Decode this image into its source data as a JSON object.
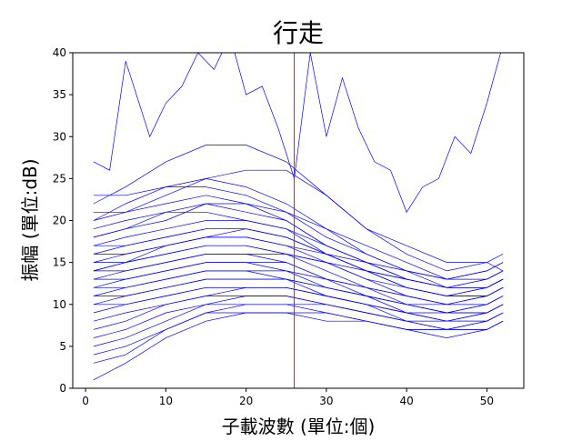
{
  "chart_data": {
    "type": "line",
    "title": "行走",
    "xlabel": "子載波數 (單位:個)",
    "ylabel": "振幅 (單位:dB)",
    "xlim": [
      -1.6,
      54.6
    ],
    "ylim": [
      0,
      40
    ],
    "xticks": [
      0,
      10,
      20,
      30,
      40,
      50
    ],
    "yticks": [
      0,
      5,
      10,
      15,
      20,
      25,
      30,
      35,
      40
    ],
    "grid": false,
    "legend": "none",
    "series_color": "#0000ff",
    "marker_color": "#ff0000",
    "marker_x": 26,
    "subcarriers": [
      1,
      52
    ],
    "series": [
      {
        "x": [
          1,
          3,
          5,
          8,
          10,
          12,
          14,
          16,
          18,
          20,
          22,
          24,
          26,
          28,
          30,
          32,
          34,
          36,
          38,
          40,
          42,
          44,
          46,
          48,
          50,
          52
        ],
        "y": [
          27,
          26,
          39,
          30,
          34,
          36,
          40,
          38,
          42,
          35,
          36,
          31,
          25,
          40,
          30,
          37,
          31,
          27,
          26,
          21,
          24,
          25,
          30,
          28,
          34,
          41
        ]
      },
      {
        "x": [
          1,
          5,
          10,
          15,
          20,
          25,
          30,
          35,
          40,
          45,
          50,
          52
        ],
        "y": [
          22,
          24,
          27,
          29,
          29,
          27,
          23,
          19,
          17,
          15,
          15,
          14
        ]
      },
      {
        "x": [
          1,
          5,
          10,
          15,
          20,
          25,
          30,
          35,
          40,
          45,
          50,
          52
        ],
        "y": [
          20,
          22,
          24,
          25,
          24,
          22,
          19,
          16,
          14,
          13,
          14,
          15
        ]
      },
      {
        "x": [
          1,
          5,
          10,
          15,
          20,
          25,
          30,
          35,
          40,
          45,
          50,
          52
        ],
        "y": [
          18,
          19,
          21,
          22,
          21,
          20,
          17,
          15,
          13,
          12,
          13,
          14
        ]
      },
      {
        "x": [
          1,
          5,
          10,
          15,
          20,
          25,
          30,
          35,
          40,
          45,
          50,
          52
        ],
        "y": [
          16,
          17,
          18,
          19,
          19,
          18,
          16,
          14,
          12,
          11,
          12,
          13
        ]
      },
      {
        "x": [
          1,
          5,
          10,
          15,
          20,
          25,
          30,
          35,
          40,
          45,
          50,
          52
        ],
        "y": [
          15,
          15,
          16,
          17,
          17,
          16,
          15,
          13,
          12,
          11,
          11,
          12
        ]
      },
      {
        "x": [
          1,
          5,
          10,
          15,
          20,
          25,
          30,
          35,
          40,
          45,
          50,
          52
        ],
        "y": [
          14,
          15,
          17,
          18,
          18,
          17,
          15,
          13,
          11,
          10,
          11,
          12
        ]
      },
      {
        "x": [
          1,
          5,
          10,
          15,
          20,
          25,
          30,
          35,
          40,
          45,
          50,
          52
        ],
        "y": [
          13,
          14,
          15,
          16,
          16,
          15,
          13,
          12,
          10,
          10,
          10,
          11
        ]
      },
      {
        "x": [
          1,
          5,
          10,
          15,
          20,
          25,
          30,
          35,
          40,
          45,
          50,
          52
        ],
        "y": [
          12,
          13,
          14,
          15,
          15,
          14,
          13,
          11,
          10,
          9,
          10,
          11
        ]
      },
      {
        "x": [
          1,
          5,
          10,
          15,
          20,
          25,
          30,
          35,
          40,
          45,
          50,
          52
        ],
        "y": [
          11,
          12,
          13,
          14,
          14,
          13,
          12,
          11,
          9,
          9,
          9,
          10
        ]
      },
      {
        "x": [
          1,
          5,
          10,
          15,
          20,
          25,
          30,
          35,
          40,
          45,
          50,
          52
        ],
        "y": [
          10,
          11,
          12,
          13,
          13,
          13,
          11,
          10,
          9,
          8,
          9,
          10
        ]
      },
      {
        "x": [
          1,
          5,
          10,
          15,
          20,
          25,
          30,
          35,
          40,
          45,
          50,
          52
        ],
        "y": [
          9,
          10,
          11,
          12,
          12,
          12,
          11,
          10,
          8,
          8,
          8,
          9
        ]
      },
      {
        "x": [
          1,
          5,
          10,
          15,
          20,
          25,
          30,
          35,
          40,
          45,
          50,
          52
        ],
        "y": [
          8,
          9,
          10,
          11,
          11,
          11,
          10,
          9,
          8,
          7,
          8,
          9
        ]
      },
      {
        "x": [
          1,
          5,
          10,
          15,
          20,
          25,
          30,
          35,
          40,
          45,
          50,
          52
        ],
        "y": [
          6,
          7,
          9,
          10,
          10,
          10,
          9,
          8,
          7,
          7,
          7,
          8
        ]
      },
      {
        "x": [
          1,
          5,
          10,
          15,
          20,
          25,
          30,
          35,
          40,
          45,
          50,
          52
        ],
        "y": [
          4,
          5,
          7,
          9,
          9,
          9,
          8,
          8,
          7,
          6,
          7,
          8
        ]
      },
      {
        "x": [
          1,
          5,
          10,
          15,
          20,
          25,
          30,
          35,
          40,
          45,
          50,
          52
        ],
        "y": [
          1,
          3,
          6,
          8,
          9,
          9,
          9,
          8,
          7,
          7,
          7,
          8
        ]
      },
      {
        "x": [
          1,
          5,
          10,
          15,
          20,
          25,
          30,
          35,
          40,
          45,
          50,
          52
        ],
        "y": [
          23,
          23,
          24,
          24,
          23,
          21,
          18,
          16,
          14,
          12,
          13,
          14
        ]
      },
      {
        "x": [
          1,
          5,
          10,
          15,
          20,
          25,
          30,
          35,
          40,
          45,
          50,
          52
        ],
        "y": [
          21,
          21,
          22,
          23,
          22,
          20,
          17,
          15,
          13,
          12,
          12,
          13
        ]
      },
      {
        "x": [
          1,
          5,
          10,
          15,
          20,
          25,
          30,
          35,
          40,
          45,
          50,
          52
        ],
        "y": [
          19,
          20,
          21,
          21,
          20,
          19,
          16,
          14,
          13,
          12,
          12,
          13
        ]
      },
      {
        "x": [
          1,
          5,
          10,
          15,
          20,
          25,
          30,
          35,
          40,
          45,
          50,
          52
        ],
        "y": [
          17,
          18,
          19,
          20,
          20,
          19,
          17,
          15,
          13,
          12,
          12,
          13
        ]
      },
      {
        "x": [
          1,
          5,
          10,
          15,
          20,
          25,
          30,
          35,
          40,
          45,
          50,
          52
        ],
        "y": [
          16,
          16,
          17,
          18,
          18,
          17,
          16,
          14,
          12,
          11,
          11,
          12
        ]
      },
      {
        "x": [
          1,
          5,
          10,
          15,
          20,
          25,
          30,
          35,
          40,
          45,
          50,
          52
        ],
        "y": [
          15,
          16,
          17,
          18,
          19,
          18,
          16,
          14,
          12,
          11,
          12,
          13
        ]
      },
      {
        "x": [
          1,
          5,
          10,
          15,
          20,
          25,
          30,
          35,
          40,
          45,
          50,
          52
        ],
        "y": [
          14,
          15,
          16,
          17,
          17,
          16,
          14,
          12,
          11,
          10,
          11,
          12
        ]
      },
      {
        "x": [
          1,
          5,
          10,
          15,
          20,
          25,
          30,
          35,
          40,
          45,
          50,
          52
        ],
        "y": [
          13,
          13,
          14,
          15,
          15,
          15,
          13,
          12,
          11,
          10,
          10,
          11
        ]
      },
      {
        "x": [
          1,
          5,
          10,
          15,
          20,
          25,
          30,
          35,
          40,
          45,
          50,
          52
        ],
        "y": [
          12,
          12,
          13,
          14,
          14,
          14,
          12,
          11,
          10,
          9,
          10,
          11
        ]
      },
      {
        "x": [
          1,
          5,
          10,
          15,
          20,
          25,
          30,
          35,
          40,
          45,
          50,
          52
        ],
        "y": [
          11,
          11,
          12,
          13,
          13,
          13,
          12,
          11,
          10,
          9,
          9,
          10
        ]
      },
      {
        "x": [
          1,
          5,
          10,
          15,
          20,
          25,
          30,
          35,
          40,
          45,
          50,
          52
        ],
        "y": [
          10,
          10,
          11,
          12,
          12,
          12,
          11,
          10,
          9,
          8,
          9,
          10
        ]
      },
      {
        "x": [
          1,
          5,
          10,
          15,
          20,
          25,
          30,
          35,
          40,
          45,
          50,
          52
        ],
        "y": [
          7,
          8,
          10,
          11,
          12,
          12,
          11,
          10,
          9,
          8,
          8,
          9
        ]
      },
      {
        "x": [
          1,
          5,
          10,
          15,
          20,
          25,
          30,
          35,
          40,
          45,
          50,
          52
        ],
        "y": [
          5,
          6,
          8,
          10,
          11,
          11,
          10,
          9,
          8,
          8,
          8,
          9
        ]
      },
      {
        "x": [
          1,
          5,
          10,
          15,
          20,
          25,
          30,
          35,
          40,
          45,
          50,
          52
        ],
        "y": [
          3,
          4,
          7,
          9,
          10,
          10,
          10,
          9,
          8,
          7,
          8,
          9
        ]
      },
      {
        "x": [
          1,
          5,
          10,
          15,
          20,
          25,
          30,
          35,
          40,
          45,
          50,
          52
        ],
        "y": [
          20,
          21,
          23,
          25,
          26,
          26,
          23,
          19,
          16,
          14,
          15,
          16
        ]
      },
      {
        "x": [
          1,
          5,
          10,
          15,
          20,
          25,
          30,
          35,
          40,
          45,
          50,
          52
        ],
        "y": [
          18,
          19,
          20,
          22,
          22,
          21,
          19,
          17,
          15,
          13,
          14,
          15
        ]
      },
      {
        "x": [
          1,
          5,
          10,
          15,
          20,
          25,
          30,
          35,
          40,
          45,
          50,
          52
        ],
        "y": [
          17,
          17,
          18,
          19,
          19,
          18,
          16,
          15,
          14,
          13,
          13,
          14
        ]
      },
      {
        "x": [
          1,
          5,
          10,
          15,
          20,
          25,
          30,
          35,
          40,
          45,
          50,
          52
        ],
        "y": [
          14,
          14,
          15,
          16,
          16,
          16,
          15,
          14,
          13,
          12,
          12,
          13
        ]
      }
    ]
  }
}
